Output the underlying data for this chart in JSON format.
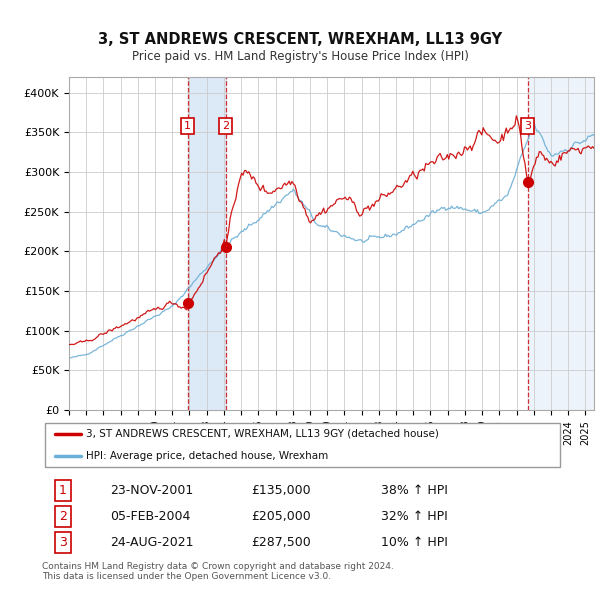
{
  "title": "3, ST ANDREWS CRESCENT, WREXHAM, LL13 9GY",
  "subtitle": "Price paid vs. HM Land Registry's House Price Index (HPI)",
  "ylim": [
    0,
    420000
  ],
  "yticks": [
    0,
    50000,
    100000,
    150000,
    200000,
    250000,
    300000,
    350000,
    400000
  ],
  "ytick_labels": [
    "£0",
    "£50K",
    "£100K",
    "£150K",
    "£200K",
    "£250K",
    "£300K",
    "£350K",
    "£400K"
  ],
  "legend_line1": "3, ST ANDREWS CRESCENT, WREXHAM, LL13 9GY (detached house)",
  "legend_line2": "HPI: Average price, detached house, Wrexham",
  "transactions": [
    {
      "label": "1",
      "date": "23-NOV-2001",
      "price": 135000,
      "pct": "38%",
      "dir": "↑",
      "ref": "HPI",
      "year_x": 2001.9
    },
    {
      "label": "2",
      "date": "05-FEB-2004",
      "price": 205000,
      "pct": "32%",
      "dir": "↑",
      "ref": "HPI",
      "year_x": 2004.1
    },
    {
      "label": "3",
      "date": "24-AUG-2021",
      "price": 287500,
      "pct": "10%",
      "dir": "↑",
      "ref": "HPI",
      "year_x": 2021.65
    }
  ],
  "footer_line1": "Contains HM Land Registry data © Crown copyright and database right 2024.",
  "footer_line2": "This data is licensed under the Open Government Licence v3.0.",
  "hpi_color": "#6baed6",
  "price_color": "#cc0000",
  "background_color": "#ffffff",
  "plot_bg_color": "#ffffff",
  "grid_color": "#cccccc",
  "vspan_color_blue": "#dce9f7",
  "vspan_color_pink": "#f0e0e0",
  "xmin": 1995.0,
  "xmax": 2025.5
}
